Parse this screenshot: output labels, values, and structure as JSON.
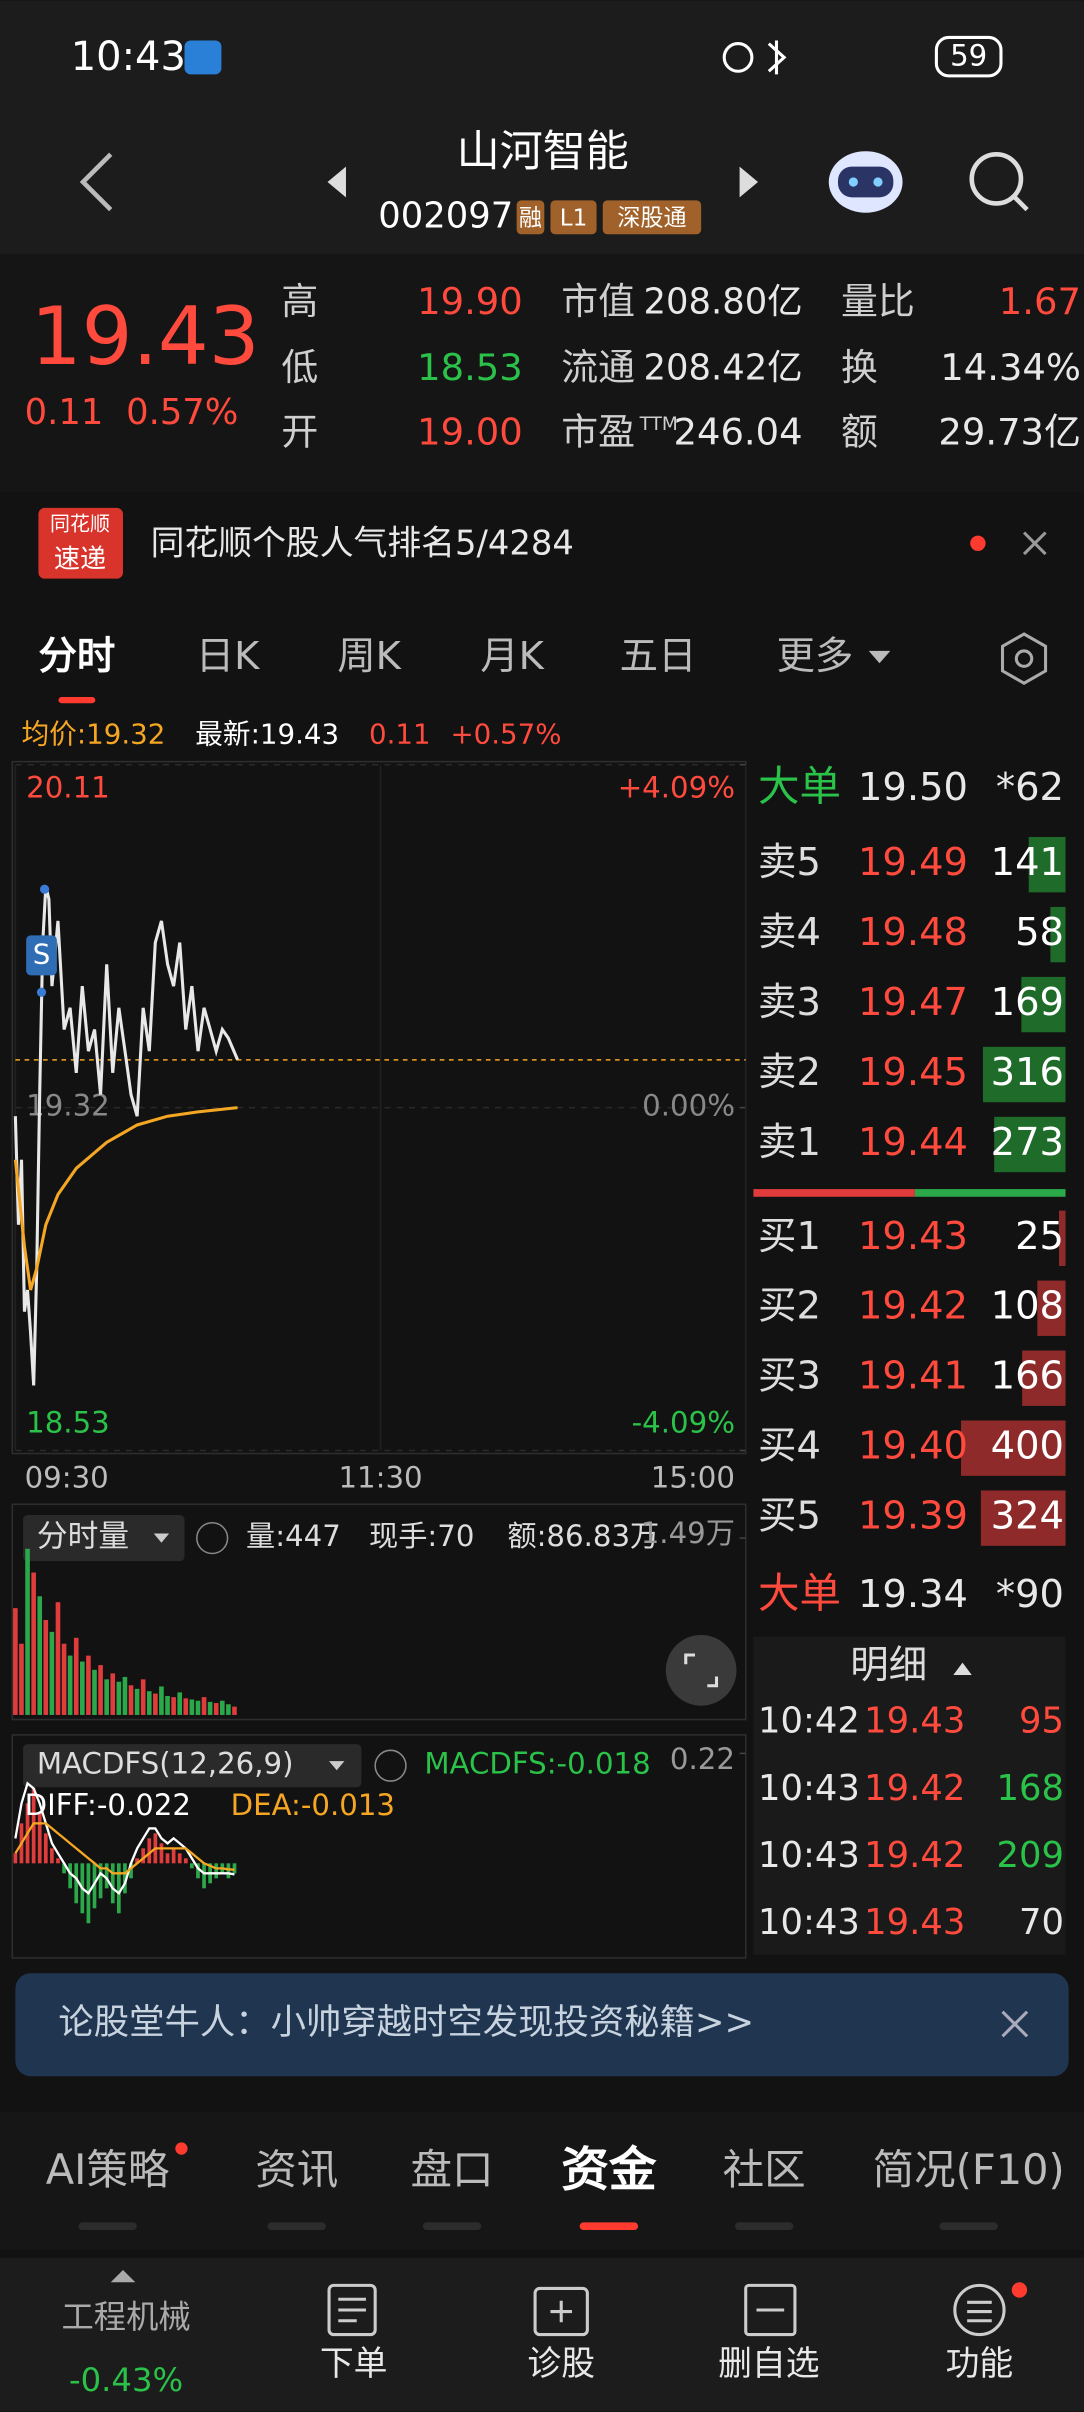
{
  "status_bar": {
    "time": "10:43",
    "battery": "59"
  },
  "header": {
    "title": "山河智能",
    "code": "002097",
    "badges": [
      "融",
      "L1",
      "深股通"
    ]
  },
  "quote": {
    "price": "19.43",
    "change": "0.11",
    "change_pct": "0.57%",
    "stats": [
      {
        "label": "高",
        "value": "19.90",
        "color": "#ff4a3d"
      },
      {
        "label": "低",
        "value": "18.53",
        "color": "#2bc24a"
      },
      {
        "label": "开",
        "value": "19.00",
        "color": "#ff4a3d"
      },
      {
        "label": "市值",
        "value": "208.80亿",
        "color": "#e8e8e8"
      },
      {
        "label": "流通",
        "value": "208.42亿",
        "color": "#e8e8e8"
      },
      {
        "label": "市盈",
        "sup": "TTM",
        "value": "246.04",
        "color": "#e8e8e8"
      },
      {
        "label": "量比",
        "value": "1.67",
        "color": "#ff4a3d"
      },
      {
        "label": "换",
        "value": "14.34%",
        "color": "#e8e8e8"
      },
      {
        "label": "额",
        "value": "29.73亿",
        "color": "#e8e8e8"
      }
    ]
  },
  "news": {
    "logo_top": "同花顺",
    "logo_bottom": "速递",
    "text": "同花顺个股人气排名5/4284"
  },
  "period_tabs": {
    "items": [
      "分时",
      "日K",
      "周K",
      "月K",
      "五日",
      "更多"
    ],
    "active": 0
  },
  "intraday_info": {
    "avg_label": "均价:19.32",
    "latest_label": "最新:19.43",
    "change": "0.11",
    "change_pct": "+0.57%",
    "signal": "S"
  },
  "chart_data": [
    {
      "type": "line",
      "xlim": [
        0,
        240
      ],
      "xticks": [
        {
          "value": 0,
          "label": "09:30"
        },
        {
          "value": 120,
          "label": "11:30"
        },
        {
          "value": 240,
          "label": "15:00"
        }
      ],
      "ylim": [
        18.53,
        20.11
      ],
      "yticks": [
        20.11,
        19.32,
        18.53
      ],
      "y2lim": [
        -4.09,
        4.09
      ],
      "y2ticks": [
        {
          "value": 4.09,
          "label": "+4.09%"
        },
        {
          "value": 0,
          "label": "0.00%"
        },
        {
          "value": -4.09,
          "label": "-4.09%"
        }
      ],
      "series": [
        {
          "color": "#e8e8e8",
          "x": [
            0,
            1,
            2,
            3,
            4,
            5,
            6,
            7,
            8,
            9,
            10,
            11,
            12,
            14,
            16,
            18,
            20,
            22,
            24,
            26,
            28,
            30,
            32,
            34,
            36,
            38,
            40,
            42,
            44,
            46,
            48,
            50,
            52,
            54,
            56,
            58,
            60,
            62,
            64,
            66,
            68,
            70,
            73
          ],
          "values": [
            19.3,
            19.05,
            19.2,
            18.85,
            18.9,
            18.8,
            18.68,
            18.95,
            19.35,
            19.7,
            19.83,
            19.8,
            19.6,
            19.75,
            19.5,
            19.55,
            19.4,
            19.6,
            19.45,
            19.5,
            19.35,
            19.65,
            19.4,
            19.55,
            19.45,
            19.35,
            19.3,
            19.55,
            19.45,
            19.7,
            19.75,
            19.65,
            19.6,
            19.7,
            19.5,
            19.6,
            19.45,
            19.55,
            19.5,
            19.45,
            19.5,
            19.48,
            19.43
          ]
        },
        {
          "color": "#f5a623",
          "x": [
            0,
            3,
            5,
            7,
            10,
            14,
            20,
            30,
            40,
            50,
            60,
            73
          ],
          "values": [
            19.2,
            19.0,
            18.9,
            18.95,
            19.05,
            19.12,
            19.18,
            19.24,
            19.28,
            19.3,
            19.31,
            19.32
          ]
        }
      ]
    },
    {
      "type": "bar",
      "title": "分时量",
      "annotations": [
        "量:447",
        "现手:70",
        "额:86.83万"
      ],
      "xlim": [
        0,
        240
      ],
      "ylim": [
        0,
        14900
      ],
      "yticks": [
        {
          "value": 14900,
          "label": "1.49万"
        }
      ],
      "x": [
        0,
        2,
        4,
        6,
        8,
        10,
        12,
        14,
        16,
        18,
        20,
        22,
        24,
        26,
        28,
        30,
        32,
        34,
        36,
        38,
        40,
        42,
        44,
        46,
        48,
        50,
        52,
        54,
        56,
        58,
        60,
        62,
        64,
        66,
        68,
        70,
        72
      ],
      "values": [
        9000,
        6000,
        14000,
        12000,
        10000,
        8000,
        7000,
        9500,
        6000,
        5000,
        6500,
        4500,
        5000,
        3800,
        4200,
        3000,
        3500,
        2800,
        3200,
        2500,
        2200,
        3000,
        2000,
        1800,
        2400,
        1600,
        1500,
        1900,
        1400,
        1300,
        1200,
        1500,
        1100,
        1000,
        1200,
        900,
        700
      ],
      "colors": [
        "#e03c3c",
        "#e03c3c",
        "#2ba84a",
        "#e03c3c",
        "#2ba84a",
        "#e03c3c",
        "#2ba84a",
        "#e03c3c",
        "#e03c3c",
        "#2ba84a",
        "#e03c3c",
        "#2ba84a",
        "#e03c3c",
        "#2ba84a",
        "#e03c3c",
        "#2ba84a",
        "#e03c3c",
        "#2ba84a",
        "#2ba84a",
        "#e03c3c",
        "#2ba84a",
        "#e03c3c",
        "#2ba84a",
        "#e03c3c",
        "#2ba84a",
        "#2ba84a",
        "#e03c3c",
        "#2ba84a",
        "#e03c3c",
        "#2ba84a",
        "#2ba84a",
        "#e03c3c",
        "#2ba84a",
        "#e03c3c",
        "#2ba84a",
        "#2ba84a",
        "#e03c3c"
      ]
    },
    {
      "type": "macd",
      "title": "MACDFS(12,26,9)",
      "macdfs_label": "MACDFS:-0.018",
      "diff_label": "DIFF:-0.022",
      "dea_label": "DEA:-0.013",
      "xlim": [
        0,
        240
      ],
      "ylim": [
        -0.18,
        0.22
      ],
      "yticks": [
        0.22
      ],
      "x": [
        0,
        2,
        4,
        6,
        8,
        10,
        12,
        14,
        16,
        18,
        20,
        22,
        24,
        26,
        28,
        30,
        32,
        34,
        36,
        38,
        40,
        42,
        44,
        46,
        48,
        50,
        52,
        54,
        56,
        58,
        60,
        62,
        64,
        66,
        68,
        70,
        72
      ],
      "hist": [
        0.02,
        0.08,
        0.12,
        0.15,
        0.1,
        0.06,
        0.03,
        0.01,
        -0.02,
        -0.05,
        -0.08,
        -0.1,
        -0.12,
        -0.09,
        -0.07,
        -0.05,
        -0.08,
        -0.1,
        -0.06,
        -0.03,
        0.01,
        0.03,
        0.05,
        0.06,
        0.04,
        0.02,
        0.03,
        0.02,
        0.01,
        -0.01,
        -0.03,
        -0.05,
        -0.04,
        -0.03,
        -0.02,
        -0.03,
        -0.02
      ],
      "diff": [
        0.05,
        0.12,
        0.16,
        0.15,
        0.12,
        0.08,
        0.04,
        0.02,
        0.0,
        -0.02,
        -0.03,
        -0.05,
        -0.06,
        -0.04,
        -0.02,
        -0.03,
        -0.05,
        -0.06,
        -0.04,
        0.0,
        0.03,
        0.05,
        0.07,
        0.07,
        0.05,
        0.04,
        0.05,
        0.04,
        0.03,
        0.01,
        -0.01,
        -0.02,
        -0.02,
        -0.02,
        -0.02,
        -0.02,
        -0.022
      ],
      "dea": [
        0.02,
        0.04,
        0.06,
        0.08,
        0.08,
        0.08,
        0.07,
        0.06,
        0.05,
        0.04,
        0.03,
        0.02,
        0.01,
        0.0,
        -0.01,
        -0.01,
        -0.02,
        -0.02,
        -0.02,
        -0.01,
        0.0,
        0.01,
        0.02,
        0.03,
        0.03,
        0.03,
        0.03,
        0.03,
        0.03,
        0.02,
        0.01,
        0.0,
        -0.005,
        -0.01,
        -0.01,
        -0.012,
        -0.013
      ],
      "diff_color": "#ffffff",
      "dea_color": "#f5a623"
    }
  ],
  "order_book": {
    "big_sell": {
      "label": "大单",
      "price": "19.50",
      "qty": "*62"
    },
    "asks": [
      {
        "label": "卖5",
        "price": "19.49",
        "qty": 141
      },
      {
        "label": "卖4",
        "price": "19.48",
        "qty": 58
      },
      {
        "label": "卖3",
        "price": "19.47",
        "qty": 169
      },
      {
        "label": "卖2",
        "price": "19.45",
        "qty": 316
      },
      {
        "label": "卖1",
        "price": "19.44",
        "qty": 273
      }
    ],
    "bids": [
      {
        "label": "买1",
        "price": "19.43",
        "qty": 25
      },
      {
        "label": "买2",
        "price": "19.42",
        "qty": 108
      },
      {
        "label": "买3",
        "price": "19.41",
        "qty": 166
      },
      {
        "label": "买4",
        "price": "19.40",
        "qty": 400
      },
      {
        "label": "买5",
        "price": "19.39",
        "qty": 324
      }
    ],
    "big_buy": {
      "label": "大单",
      "price": "19.34",
      "qty": "*90"
    }
  },
  "ticks_detail": {
    "title": "明细",
    "rows": [
      {
        "time": "10:42",
        "price": "19.43",
        "qty": "95",
        "color": "#ff4a3d"
      },
      {
        "time": "10:43",
        "price": "19.42",
        "qty": "168",
        "color": "#2bc24a"
      },
      {
        "time": "10:43",
        "price": "19.42",
        "qty": "209",
        "color": "#2bc24a"
      },
      {
        "time": "10:43",
        "price": "19.43",
        "qty": "70",
        "color": "#e8e8e8"
      }
    ]
  },
  "banner": {
    "text": "论股堂牛人：小帅穿越时空发现投资秘籍>>"
  },
  "bottom_tabs": {
    "items": [
      "AI策略",
      "资讯",
      "盘口",
      "资金",
      "社区",
      "简况(F10)"
    ],
    "active": 3
  },
  "footer": {
    "sector": "工程机械",
    "sector_change": "-0.43%",
    "buttons": [
      "下单",
      "诊股",
      "删自选",
      "功能"
    ]
  }
}
